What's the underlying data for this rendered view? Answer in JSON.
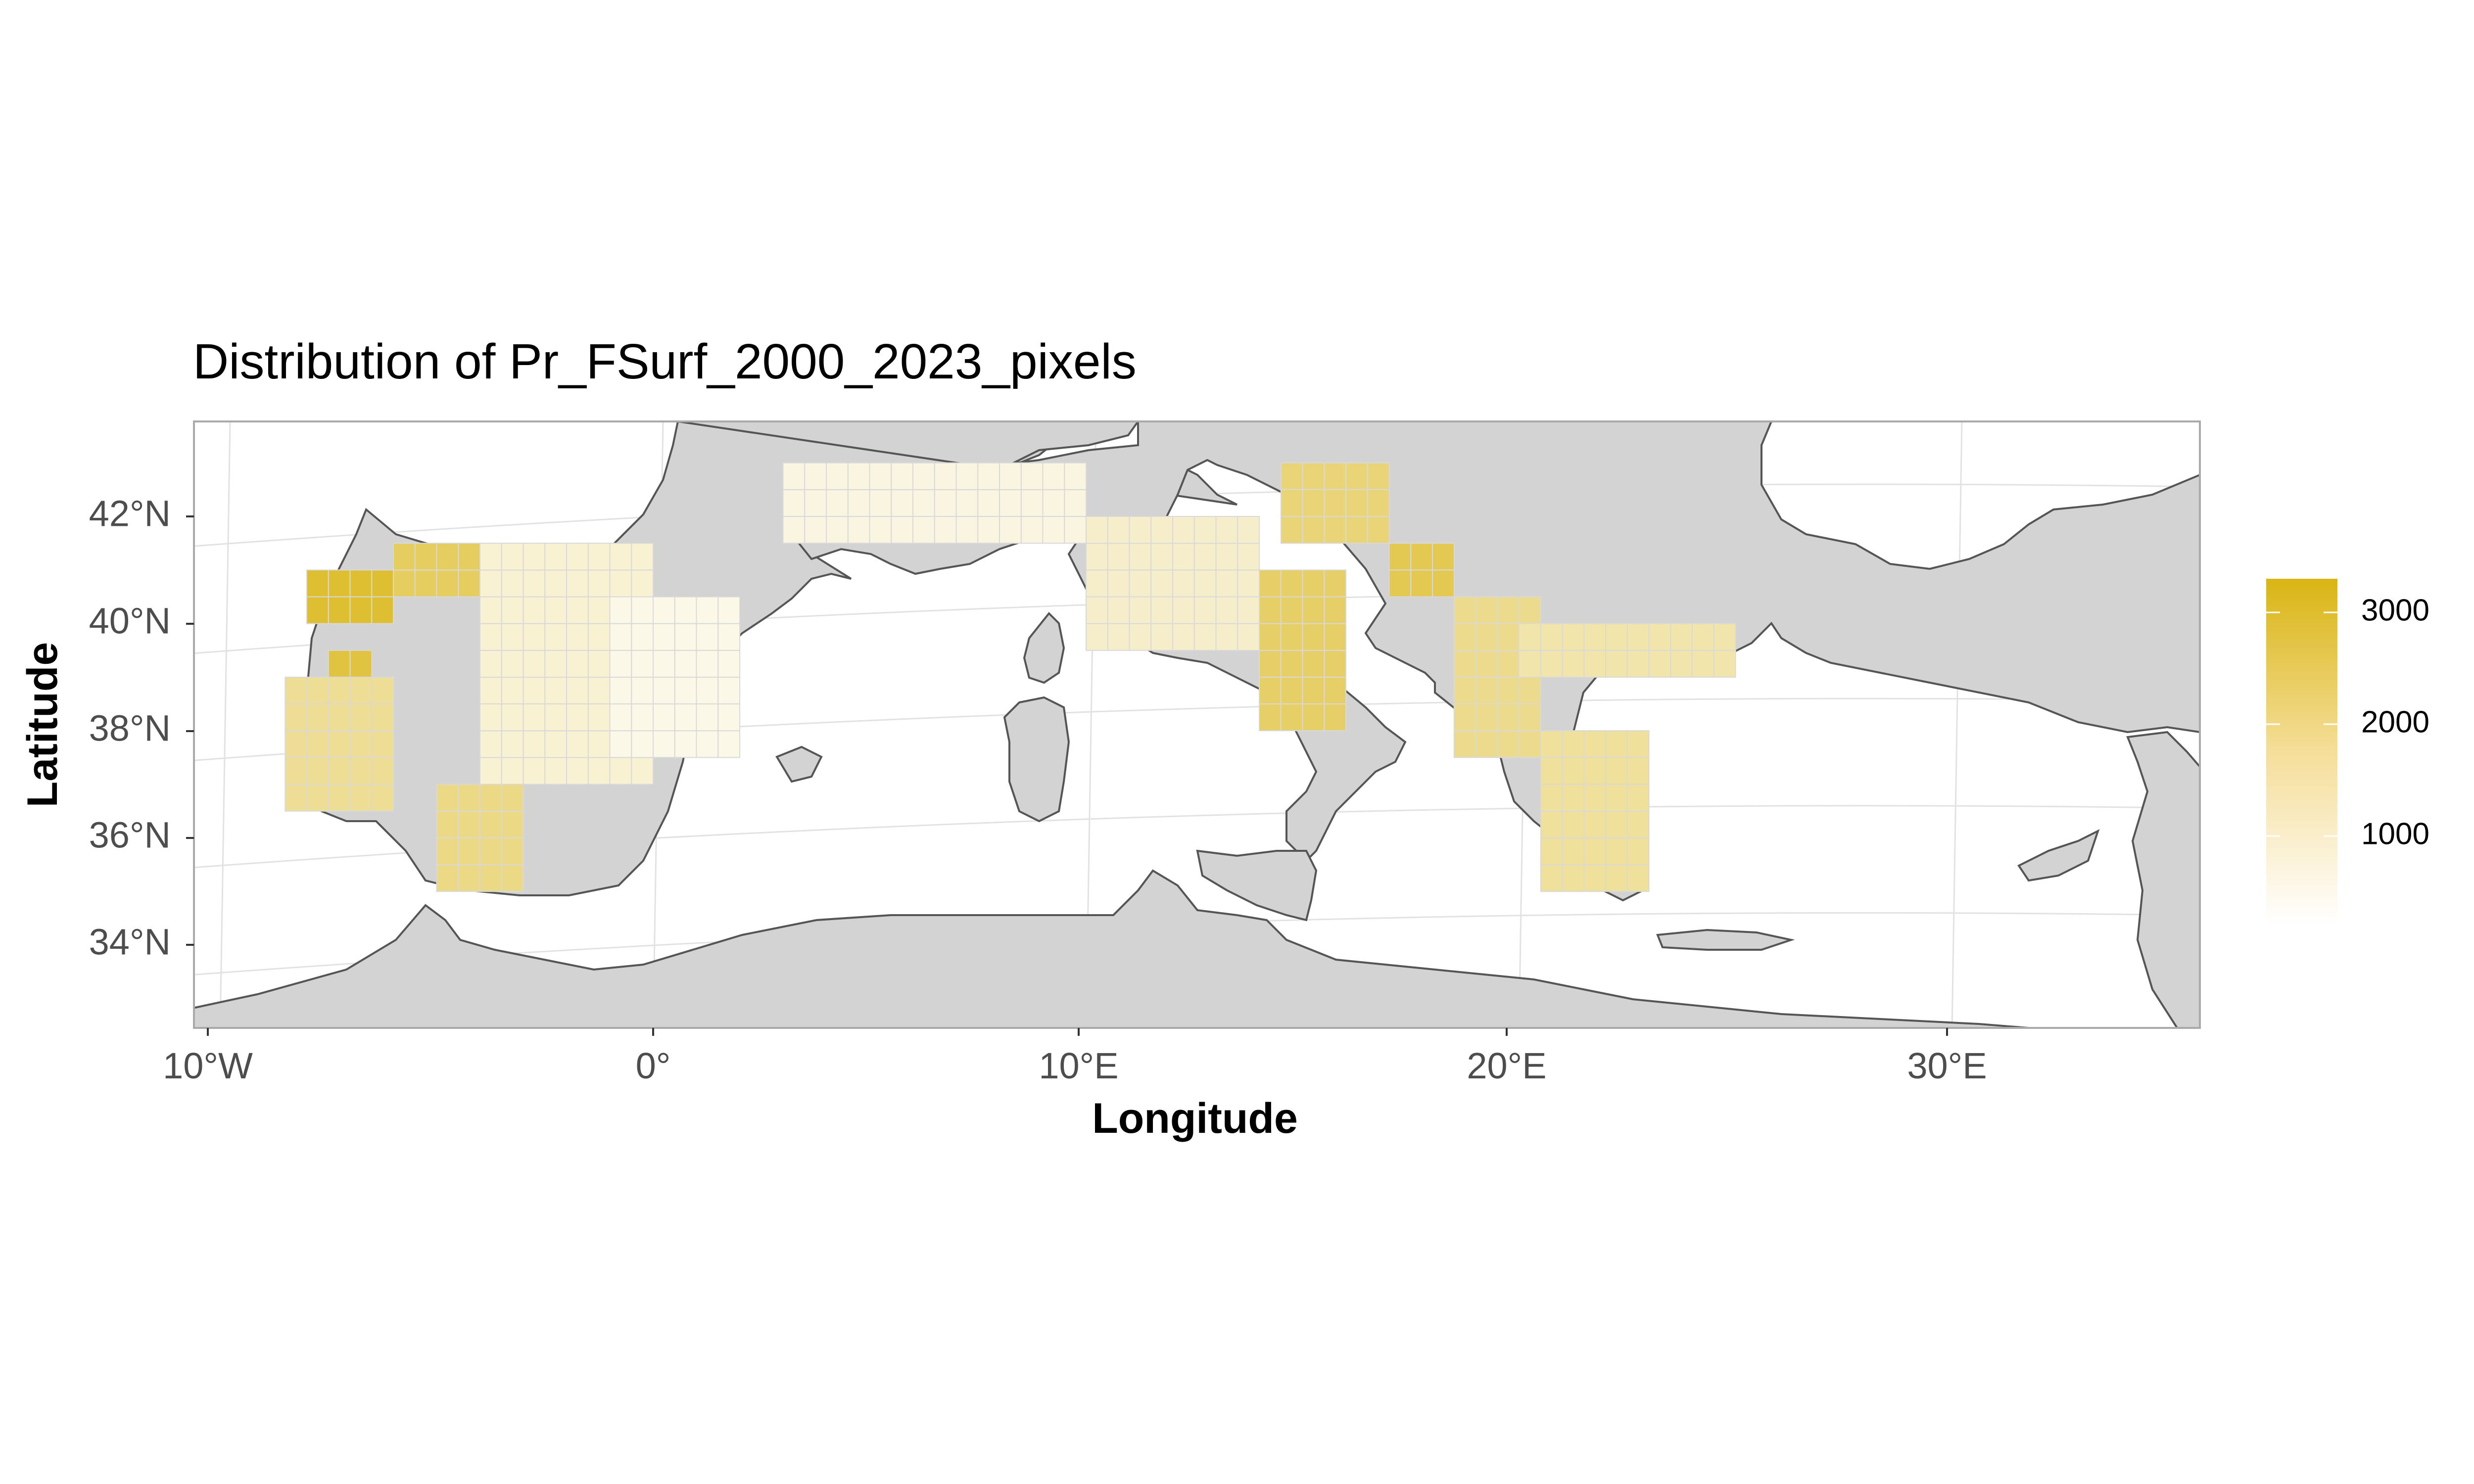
{
  "title": "Distribution of Pr_FSurf_2000_2023_pixels",
  "x_axis": {
    "label": "Longitude",
    "ticks": [
      {
        "value": -10,
        "label": "10°W"
      },
      {
        "value": 0,
        "label": "0°"
      },
      {
        "value": 10,
        "label": "10°E"
      },
      {
        "value": 20,
        "label": "20°E"
      },
      {
        "value": 30,
        "label": "30°E"
      }
    ]
  },
  "y_axis": {
    "label": "Latitude",
    "ticks": [
      {
        "value": 42,
        "label": "42°N"
      },
      {
        "value": 40,
        "label": "40°N"
      },
      {
        "value": 38,
        "label": "38°N"
      },
      {
        "value": 36,
        "label": "36°N"
      },
      {
        "value": 34,
        "label": "34°N"
      }
    ]
  },
  "legend": {
    "position": "right",
    "type": "continuous colorbar",
    "range": [
      200,
      3300
    ],
    "ticks": [
      {
        "value": 1000,
        "label": "1000"
      },
      {
        "value": 2000,
        "label": "2000"
      },
      {
        "value": 3000,
        "label": "3000"
      }
    ],
    "low_color": "#FFFFFF",
    "high_color": "#D9B514"
  },
  "colors": {
    "land": "#D3D3D3",
    "sea": "#FFFFFF",
    "coastline": "#555555",
    "graticule": "#E2E2E2",
    "cell_border": "#D9D9D9",
    "panel_border": "#AAAAAA"
  },
  "chart_data": {
    "type": "heatmap",
    "variable": "Pr_FSurf_2000_2023_pixels",
    "grid_resolution_deg": 0.5,
    "xlim": [
      -10.5,
      35.5
    ],
    "ylim": [
      32.5,
      43.5
    ],
    "grid_on": true,
    "regions": [
      {
        "lon": [
          -8.0,
          -6.0
        ],
        "lat": [
          40.0,
          41.0
        ],
        "value": 2900
      },
      {
        "lon": [
          -7.5,
          -6.5
        ],
        "lat": [
          38.5,
          39.5
        ],
        "value": 2700
      },
      {
        "lon": [
          -6.0,
          -4.0
        ],
        "lat": [
          40.5,
          41.5
        ],
        "value": 2300
      },
      {
        "lon": [
          -8.5,
          -6.0
        ],
        "lat": [
          36.5,
          39.0
        ],
        "value": 1600
      },
      {
        "lon": [
          -5.0,
          -3.0
        ],
        "lat": [
          35.0,
          37.0
        ],
        "value": 1800
      },
      {
        "lon": [
          -4.0,
          0.0
        ],
        "lat": [
          37.0,
          41.5
        ],
        "value": 800
      },
      {
        "lon": [
          -1.0,
          2.0
        ],
        "lat": [
          37.5,
          40.5
        ],
        "value": 500
      },
      {
        "lon": [
          3.0,
          10.0
        ],
        "lat": [
          41.5,
          43.0
        ],
        "value": 600
      },
      {
        "lon": [
          10.0,
          14.0
        ],
        "lat": [
          39.5,
          42.0
        ],
        "value": 900
      },
      {
        "lon": [
          14.0,
          16.0
        ],
        "lat": [
          38.0,
          41.0
        ],
        "value": 2200
      },
      {
        "lon": [
          14.5,
          17.0
        ],
        "lat": [
          41.5,
          43.0
        ],
        "value": 2000
      },
      {
        "lon": [
          17.0,
          18.5
        ],
        "lat": [
          40.5,
          41.5
        ],
        "value": 2500
      },
      {
        "lon": [
          18.5,
          20.5
        ],
        "lat": [
          37.5,
          40.5
        ],
        "value": 1700
      },
      {
        "lon": [
          20.5,
          23.0
        ],
        "lat": [
          35.0,
          38.0
        ],
        "value": 1500
      },
      {
        "lon": [
          20.0,
          25.0
        ],
        "lat": [
          39.0,
          40.0
        ],
        "value": 1300
      }
    ]
  }
}
